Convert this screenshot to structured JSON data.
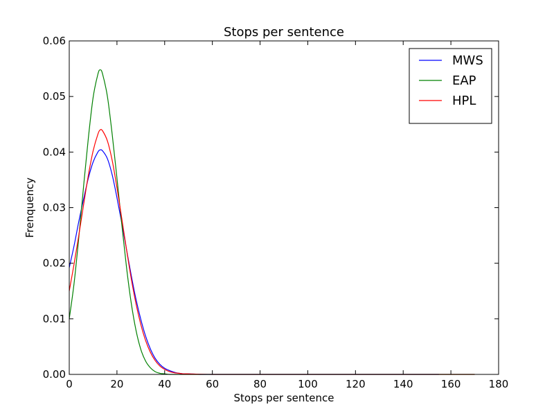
{
  "chart_data": {
    "type": "line",
    "title": "Stops per sentence",
    "xlabel": "Stops per sentence",
    "ylabel": "Frenquency",
    "xlim": [
      0,
      180
    ],
    "ylim": [
      0,
      0.06
    ],
    "x_ticks": [
      0,
      20,
      40,
      60,
      80,
      100,
      120,
      140,
      160,
      180
    ],
    "y_ticks": [
      0.0,
      0.01,
      0.02,
      0.03,
      0.04,
      0.05,
      0.06
    ],
    "grid": false,
    "legend_position": "top-right",
    "series": [
      {
        "name": "MWS",
        "color": "#0000ff",
        "x": [
          0,
          2,
          4,
          6,
          8,
          10,
          12,
          13,
          14,
          16,
          18,
          20,
          22,
          24,
          26,
          28,
          30,
          32,
          34,
          36,
          38,
          40,
          42,
          44,
          46,
          48,
          50,
          55,
          60,
          70,
          80,
          100,
          120,
          140,
          155
        ],
        "y": [
          0.0192,
          0.0231,
          0.0275,
          0.0315,
          0.0353,
          0.0382,
          0.04,
          0.0404,
          0.0402,
          0.0388,
          0.0359,
          0.0318,
          0.0273,
          0.0225,
          0.0178,
          0.0135,
          0.0099,
          0.0069,
          0.0046,
          0.0029,
          0.0018,
          0.0011,
          0.0007,
          0.0004,
          0.0002,
          0.0001,
          0.0001,
          0.0,
          0.0,
          0.0,
          0.0,
          0.0,
          0.0,
          0.0,
          0.0
        ]
      },
      {
        "name": "EAP",
        "color": "#008000",
        "x": [
          0,
          2,
          4,
          6,
          8,
          10,
          12,
          13,
          14,
          16,
          18,
          20,
          22,
          24,
          26,
          28,
          30,
          32,
          34,
          36,
          38,
          40,
          42,
          44,
          46,
          48,
          50,
          60,
          80,
          100,
          120,
          140,
          170
        ],
        "y": [
          0.01,
          0.0163,
          0.0246,
          0.0338,
          0.0425,
          0.0498,
          0.054,
          0.0548,
          0.054,
          0.05,
          0.0432,
          0.0353,
          0.0271,
          0.0193,
          0.0128,
          0.0079,
          0.0045,
          0.0024,
          0.0012,
          0.0005,
          0.0002,
          0.0001,
          0.0,
          0.0,
          0.0,
          0.0,
          0.0,
          0.0,
          0.0,
          0.0,
          0.0,
          0.0,
          0.0
        ]
      },
      {
        "name": "HPL",
        "color": "#ff0000",
        "x": [
          0,
          2,
          4,
          6,
          8,
          10,
          12,
          13,
          14,
          16,
          18,
          20,
          22,
          24,
          26,
          28,
          30,
          32,
          34,
          36,
          38,
          40,
          42,
          44,
          46,
          48,
          50,
          60,
          80,
          100,
          120,
          140,
          160,
          170
        ],
        "y": [
          0.015,
          0.0198,
          0.025,
          0.0305,
          0.0358,
          0.0402,
          0.0432,
          0.044,
          0.0438,
          0.042,
          0.0385,
          0.0336,
          0.0281,
          0.0225,
          0.0172,
          0.0127,
          0.009,
          0.0061,
          0.004,
          0.0025,
          0.0015,
          0.0009,
          0.0005,
          0.0003,
          0.0002,
          0.0001,
          0.0001,
          0.0,
          0.0,
          0.0,
          0.0,
          0.0,
          0.0,
          0.0
        ]
      }
    ]
  }
}
